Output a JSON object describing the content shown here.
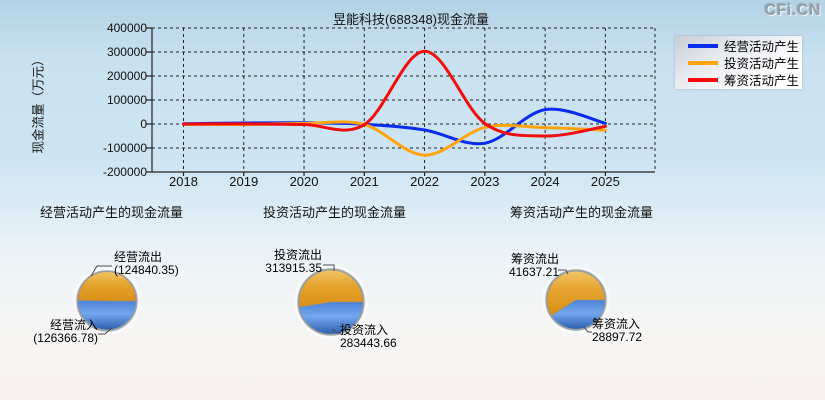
{
  "logo": "CFi.CN",
  "chart_data": [
    {
      "type": "line",
      "title": "昱能科技(688348)现金流量",
      "xlabel": "",
      "ylabel": "现金流量（万元）",
      "x": [
        2018,
        2019,
        2020,
        2021,
        2022,
        2023,
        2024,
        2025
      ],
      "series": [
        {
          "name": "经营活动产生",
          "color": "#0a2cee",
          "values": [
            1000,
            4000,
            5000,
            -1000,
            -25000,
            -80000,
            60000,
            3000
          ]
        },
        {
          "name": "投资活动产生",
          "color": "#ffa40d",
          "values": [
            -1000,
            -2000,
            2000,
            -2000,
            -130000,
            -14000,
            -15000,
            -26000
          ]
        },
        {
          "name": "筹资活动产生",
          "color": "#f20c0c",
          "values": [
            -500,
            500,
            -2000,
            -3000,
            303000,
            2000,
            -50000,
            -10000
          ]
        }
      ],
      "ylim": [
        -200000,
        400000
      ],
      "yticks": [
        "400000",
        "300000",
        "200000",
        "100000",
        "0",
        "-100000",
        "-200000"
      ],
      "grid": true,
      "legend_position": "right"
    },
    {
      "type": "pie",
      "title": "经营活动产生的现金流量",
      "slices": [
        {
          "label": "经营流出",
          "value": 124840.35,
          "display": "(124840.35)",
          "color": "#e6a52f"
        },
        {
          "label": "经营流入",
          "value": 126366.78,
          "display": "(126366.78)",
          "color": "#4b82d8"
        }
      ]
    },
    {
      "type": "pie",
      "title": "投资活动产生的现金流量",
      "slices": [
        {
          "label": "投资流出",
          "value": 313915.35,
          "display": "313915.35",
          "color": "#e6a52f"
        },
        {
          "label": "投资流入",
          "value": 283443.66,
          "display": "283443.66",
          "color": "#4b82d8"
        }
      ]
    },
    {
      "type": "pie",
      "title": "筹资活动产生的现金流量",
      "slices": [
        {
          "label": "筹资流出",
          "value": 41637.21,
          "display": "41637.21",
          "color": "#e6a52f"
        },
        {
          "label": "筹资流入",
          "value": 28897.72,
          "display": "28897.72",
          "color": "#4b82d8"
        }
      ]
    }
  ]
}
